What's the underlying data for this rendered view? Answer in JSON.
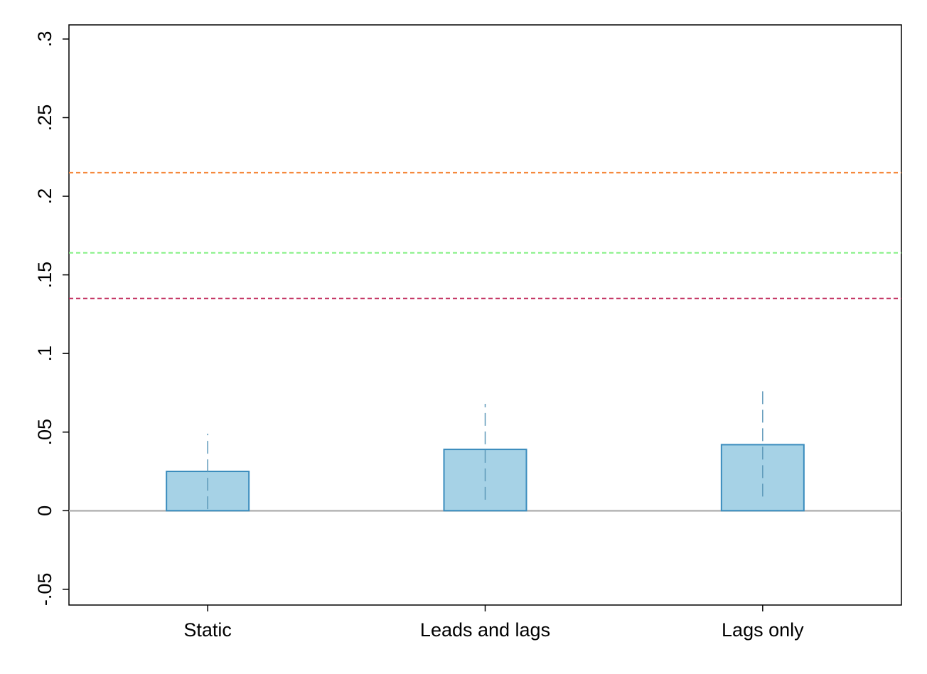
{
  "chart_data": {
    "type": "bar",
    "categories": [
      "Static",
      "Leads and lags",
      "Lags only"
    ],
    "values": [
      0.025,
      0.039,
      0.042
    ],
    "ci_low": [
      0.001,
      0.007,
      0.009
    ],
    "ci_high": [
      0.049,
      0.068,
      0.077
    ],
    "reference_lines": [
      {
        "value": 0.215,
        "color": "#f5873a",
        "style": "dashed"
      },
      {
        "value": 0.164,
        "color": "#7ef07e",
        "style": "dashed"
      },
      {
        "value": 0.135,
        "color": "#c0285a",
        "style": "dashed"
      }
    ],
    "zero_line": {
      "value": 0,
      "color": "#b5b5b5"
    },
    "yticks": [
      -0.05,
      0,
      0.05,
      0.1,
      0.15,
      0.2,
      0.25,
      0.3
    ],
    "ytick_labels": [
      "-.05",
      "0",
      ".05",
      ".1",
      ".15",
      ".2",
      ".25",
      ".3"
    ],
    "ylim": [
      -0.06,
      0.309
    ],
    "title": "",
    "xlabel": "",
    "ylabel": "",
    "grid": false,
    "bar_color": "#a6d2e6",
    "bar_edge_color": "#3a8cbd",
    "ci_color": "#5b97b8"
  }
}
